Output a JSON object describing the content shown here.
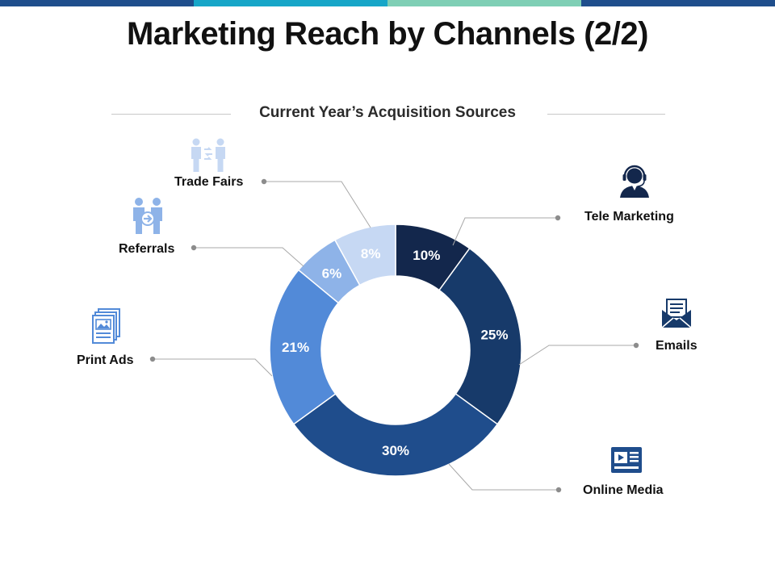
{
  "header": {
    "title": "Marketing Reach by Channels (2/2)",
    "bar_colors": [
      "#1f4e8c",
      "#17a6c8",
      "#7fcfb5",
      "#1f4e8c"
    ]
  },
  "chart_data": {
    "type": "pie",
    "title": "Current Year’s Acquisition Sources",
    "donut": true,
    "slices": [
      {
        "label": "Tele Marketing",
        "value": 10,
        "display": "10%",
        "color": "#13274c",
        "icon": "headset-agent-icon"
      },
      {
        "label": "Emails",
        "value": 25,
        "display": "25%",
        "color": "#173a6a",
        "icon": "envelope-icon"
      },
      {
        "label": "Online Media",
        "value": 30,
        "display": "30%",
        "color": "#1f4d8c",
        "icon": "video-player-icon"
      },
      {
        "label": "Print Ads",
        "value": 21,
        "display": "21%",
        "color": "#528ad8",
        "icon": "document-image-icon"
      },
      {
        "label": "Referrals",
        "value": 6,
        "display": "6%",
        "color": "#8eb3e8",
        "icon": "people-referral-icon"
      },
      {
        "label": "Trade Fairs",
        "value": 8,
        "display": "8%",
        "color": "#c6d8f3",
        "icon": "people-exchange-icon"
      }
    ]
  }
}
